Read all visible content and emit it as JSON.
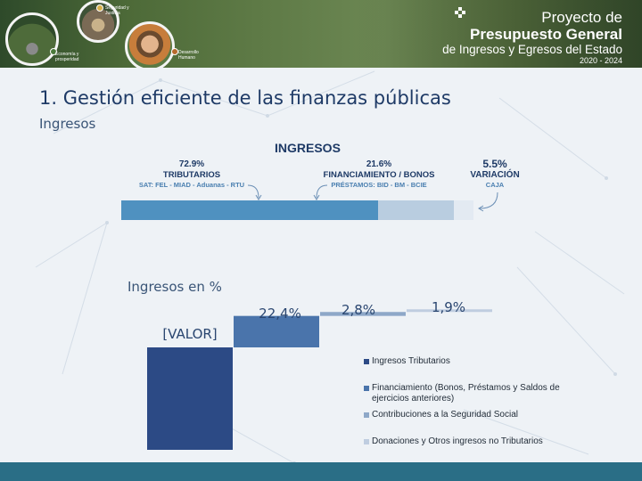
{
  "header": {
    "photo_captions": {
      "security": "Seguridad y Justicia",
      "economy": "Economía y prosperidad",
      "development": "Desarrollo Humano"
    },
    "brand": {
      "line1": "Proyecto de",
      "line2": "Presupuesto General",
      "line3": "de Ingresos y Egresos del Estado",
      "line4": "2020 - 2024"
    }
  },
  "slide": {
    "title": "1.  Gestión eficiente de las finanzas públicas",
    "subtitle": "Ingresos"
  },
  "ingresos_infographic": {
    "heading": "INGRESOS",
    "segments": [
      {
        "pct": "72.9%",
        "name": "TRIBUTARIOS",
        "detail": "SAT: FEL - MIAD - Aduanas - RTU",
        "share": 72.9,
        "color": "#4f91c0"
      },
      {
        "pct": "21.6%",
        "name": "FINANCIAMIENTO / BONOS",
        "detail": "PRÉSTAMOS: BID - BM - BCIE",
        "share": 21.6,
        "color": "#b9cde0"
      },
      {
        "pct": "5.5%",
        "name": "VARIACIÓN",
        "detail": "CAJA",
        "share": 5.5,
        "color": "#e3eaf2"
      }
    ]
  },
  "chart_data": {
    "type": "bar",
    "title": "Ingresos en %",
    "categories": [
      "Ingresos Tributarios",
      "Financiamiento (Bonos, Préstamos y Saldos de ejercicios anteriores)",
      "Contribuciones a la Seguridad Social",
      "Donaciones y Otros ingresos no Tributarios"
    ],
    "values": [
      72.9,
      22.4,
      2.8,
      1.9
    ],
    "data_labels": [
      "[VALOR]",
      "22,4%",
      "2,8%",
      "1,9%"
    ],
    "colors": [
      "#2c4a85",
      "#4a74ab",
      "#8ea8c8",
      "#bfcde0"
    ],
    "legend_position": "right",
    "grid": false
  },
  "colors": {
    "title": "#1e3a66",
    "footer": "#2a6e86",
    "background": "#eef2f6"
  }
}
